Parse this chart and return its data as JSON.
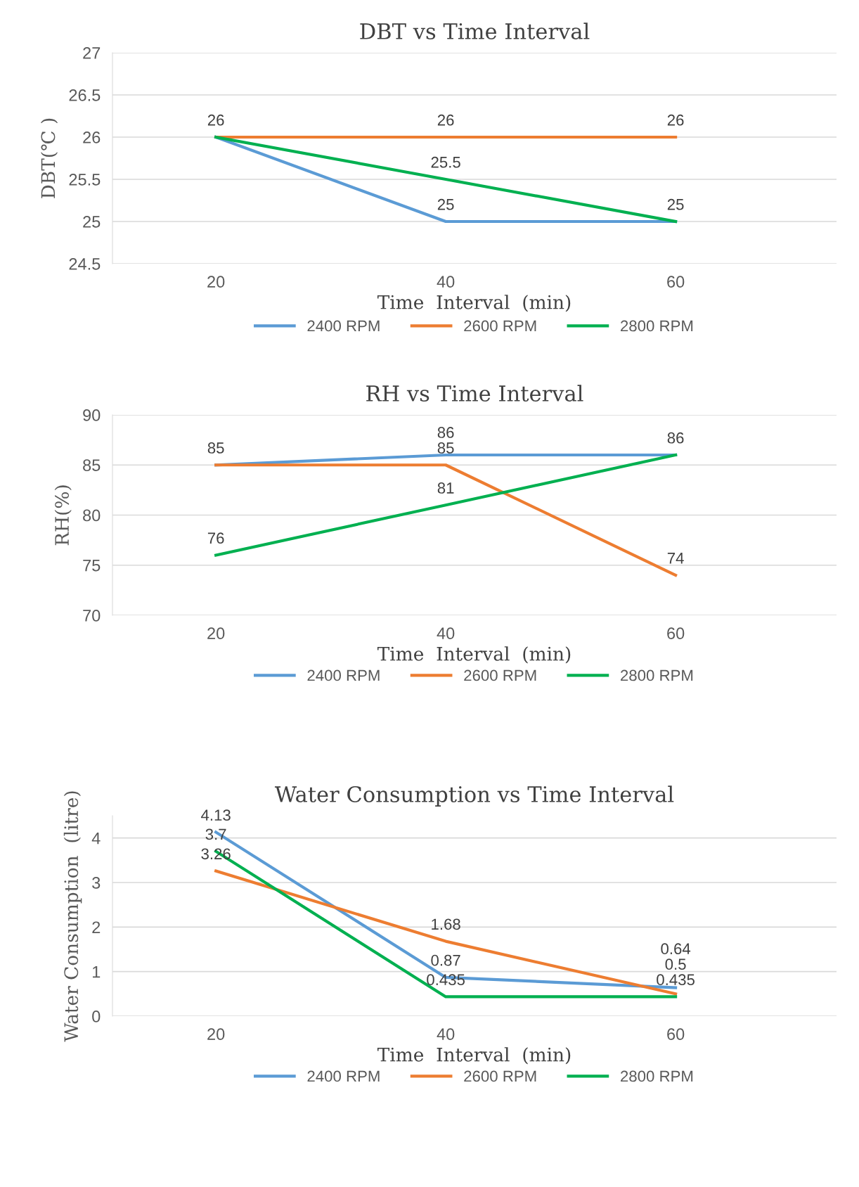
{
  "chart_data": [
    {
      "type": "line",
      "title": "DBT vs Time Interval",
      "xlabel": "Time  Interval  (min)",
      "ylabel": "DBT(℃ )",
      "categories": [
        "20",
        "40",
        "60"
      ],
      "ylim": [
        24.5,
        27
      ],
      "yticks": [
        24.5,
        25,
        25.5,
        26,
        26.5,
        27
      ],
      "grid": "y",
      "legend": "bottom",
      "series": [
        {
          "name": "2400 RPM",
          "color": "#5b9bd5",
          "values": [
            26,
            25,
            25
          ],
          "value_labels": [
            "26",
            "25",
            "25"
          ]
        },
        {
          "name": "2600 RPM",
          "color": "#ed7d31",
          "values": [
            26,
            26,
            26
          ],
          "value_labels": [
            null,
            "26",
            "26"
          ]
        },
        {
          "name": "2800 RPM",
          "color": "#00b050",
          "values": [
            26,
            25.5,
            25
          ],
          "value_labels": [
            null,
            "25.5",
            null
          ]
        }
      ]
    },
    {
      "type": "line",
      "title": "RH vs Time Interval",
      "xlabel": "Time  Interval  (min)",
      "ylabel": "RH(%)",
      "categories": [
        "20",
        "40",
        "60"
      ],
      "ylim": [
        70,
        90
      ],
      "yticks": [
        70,
        75,
        80,
        85,
        90
      ],
      "grid": "y",
      "legend": "bottom",
      "series": [
        {
          "name": "2400 RPM",
          "color": "#5b9bd5",
          "values": [
            85,
            86,
            86
          ],
          "value_labels": [
            "85",
            "86",
            "86"
          ]
        },
        {
          "name": "2600 RPM",
          "color": "#ed7d31",
          "values": [
            85,
            85,
            74
          ],
          "value_labels": [
            null,
            "85",
            "74"
          ]
        },
        {
          "name": "2800 RPM",
          "color": "#00b050",
          "values": [
            76,
            81,
            86
          ],
          "value_labels": [
            "76",
            "81",
            null
          ]
        }
      ]
    },
    {
      "type": "line",
      "title": "Water Consumption vs Time Interval",
      "xlabel": "Time  Interval  (min)",
      "ylabel": "Water Consumption  (litre)",
      "categories": [
        "20",
        "40",
        "60"
      ],
      "ylim": [
        0,
        4.5
      ],
      "yticks": [
        0,
        1,
        2,
        3,
        4
      ],
      "grid": "y",
      "legend": "bottom",
      "data_labels": true,
      "series": [
        {
          "name": "2400 RPM",
          "color": "#5b9bd5",
          "values": [
            4.13,
            0.87,
            0.64
          ]
        },
        {
          "name": "2600 RPM",
          "color": "#ed7d31",
          "values": [
            3.26,
            1.68,
            0.5
          ]
        },
        {
          "name": "2800 RPM",
          "color": "#00b050",
          "values": [
            3.7,
            0.435,
            0.435
          ]
        }
      ]
    }
  ]
}
